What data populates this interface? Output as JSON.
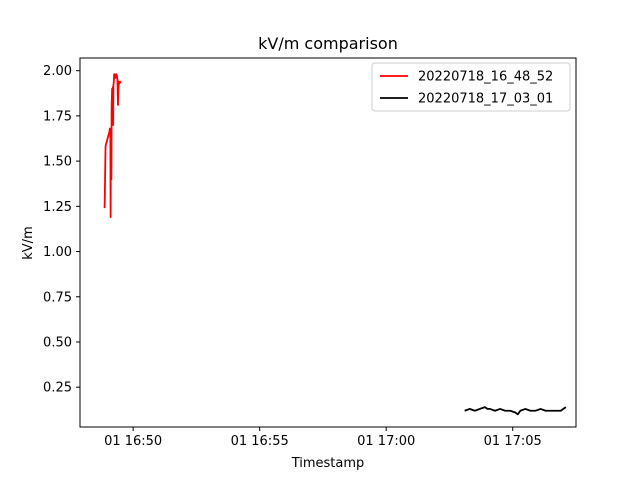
{
  "chart_data": {
    "type": "line",
    "title": "kV/m comparison",
    "xlabel": "Timestamp",
    "ylabel": "kV/m",
    "x_ticks": [
      "01 16:50",
      "01 16:55",
      "01 17:00",
      "01 17:05"
    ],
    "x_tick_minutes": [
      1010,
      1015,
      1020,
      1025
    ],
    "y_ticks": [
      "0.25",
      "0.50",
      "0.75",
      "1.00",
      "1.25",
      "1.50",
      "1.75",
      "2.00"
    ],
    "y_tick_values": [
      0.25,
      0.5,
      0.75,
      1.0,
      1.25,
      1.5,
      1.75,
      2.0
    ],
    "xlim_minutes": [
      1007.9,
      1027.5
    ],
    "ylim": [
      0.03,
      2.07
    ],
    "legend_position": "top-right",
    "grid": false,
    "series": [
      {
        "name": "20220718_16_48_52",
        "color": "#ff0000",
        "x_minutes": [
          1008.87,
          1008.88,
          1008.89,
          1008.9,
          1008.91,
          1008.92,
          1008.94,
          1008.96,
          1008.98,
          1009.0,
          1009.02,
          1009.04,
          1009.06,
          1009.07,
          1009.08,
          1009.09,
          1009.1,
          1009.11,
          1009.12,
          1009.13,
          1009.14,
          1009.15,
          1009.16,
          1009.17,
          1009.18,
          1009.19,
          1009.2,
          1009.21,
          1009.22,
          1009.23,
          1009.24,
          1009.25,
          1009.26,
          1009.28,
          1009.3,
          1009.32,
          1009.34,
          1009.36,
          1009.38,
          1009.4,
          1009.42,
          1009.44,
          1009.46,
          1009.48,
          1009.5
        ],
        "values": [
          1.24,
          1.3,
          1.4,
          1.5,
          1.58,
          1.59,
          1.6,
          1.61,
          1.62,
          1.63,
          1.64,
          1.65,
          1.66,
          1.67,
          1.68,
          1.67,
          1.66,
          1.19,
          1.65,
          1.6,
          1.4,
          1.8,
          1.85,
          1.9,
          1.7,
          1.88,
          1.91,
          1.7,
          1.92,
          1.93,
          1.95,
          1.98,
          1.97,
          1.98,
          1.96,
          1.97,
          1.98,
          1.97,
          1.95,
          1.81,
          1.9,
          1.94,
          1.93,
          1.94,
          1.93
        ]
      },
      {
        "name": "20220718_17_03_01",
        "color": "#000000",
        "x_minutes": [
          1023.1,
          1023.3,
          1023.5,
          1023.7,
          1023.9,
          1024.0,
          1024.1,
          1024.3,
          1024.5,
          1024.7,
          1024.9,
          1025.1,
          1025.2,
          1025.3,
          1025.5,
          1025.7,
          1025.9,
          1026.1,
          1026.3,
          1026.5,
          1026.7,
          1026.9,
          1027.0,
          1027.1
        ],
        "values": [
          0.12,
          0.13,
          0.12,
          0.13,
          0.14,
          0.13,
          0.13,
          0.12,
          0.13,
          0.12,
          0.12,
          0.11,
          0.1,
          0.12,
          0.13,
          0.12,
          0.12,
          0.13,
          0.12,
          0.12,
          0.12,
          0.12,
          0.13,
          0.14
        ]
      }
    ]
  }
}
